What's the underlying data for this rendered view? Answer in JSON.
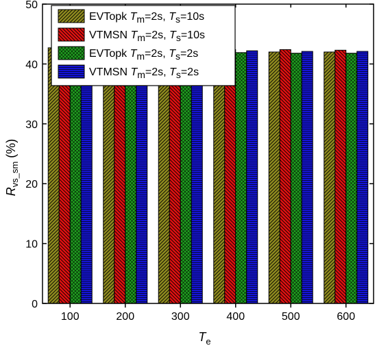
{
  "chart_data": {
    "type": "bar",
    "title": "",
    "xlabel": "T",
    "xlabel_sub": "e",
    "ylabel": "R",
    "ylabel_sub": "vs_sm",
    "ylabel_suffix": " (%)",
    "ylim": [
      0,
      50
    ],
    "yticks": [
      0,
      10,
      20,
      30,
      40,
      50
    ],
    "grid": false,
    "legend_position": "top-left",
    "categories": [
      "100",
      "200",
      "300",
      "400",
      "500",
      "600"
    ],
    "series": [
      {
        "name": "EVTopk Tm=2s, Ts=10s",
        "legend": {
          "pre": "EVTopk ",
          "m": "T",
          "m_sub": "m",
          "mid": "=2s, ",
          "s": "T",
          "s_sub": "s",
          "post": "=10s"
        },
        "color": "#8f8b1f",
        "pattern": "diag-forward",
        "values": [
          42.7,
          42.3,
          42.2,
          42.1,
          42.0,
          42.0
        ]
      },
      {
        "name": "VTMSN Tm=2s, Ts=10s",
        "legend": {
          "pre": "VTMSN ",
          "m": "T",
          "m_sub": "m",
          "mid": "=2s, ",
          "s": "T",
          "s_sub": "s",
          "post": "=10s"
        },
        "color": "#e01010",
        "pattern": "diag-back",
        "values": [
          43.0,
          42.7,
          42.5,
          42.4,
          42.4,
          42.3
        ]
      },
      {
        "name": "EVTopk Tm=2s, Ts=2s",
        "legend": {
          "pre": "EVTopk ",
          "m": "T",
          "m_sub": "m",
          "mid": "=2s, ",
          "s": "T",
          "s_sub": "s",
          "post": "=2s"
        },
        "color": "#1fa11f",
        "pattern": "crosshatch",
        "values": [
          42.2,
          42.0,
          41.9,
          41.9,
          41.8,
          41.8
        ]
      },
      {
        "name": "VTMSN Tm=2s, Ts=2s",
        "legend": {
          "pre": "VTMSN ",
          "m": "T",
          "m_sub": "m",
          "mid": "=2s, ",
          "s": "T",
          "s_sub": "s",
          "post": "=2s"
        },
        "color": "#1414d6",
        "pattern": "horizontal",
        "values": [
          42.5,
          42.3,
          42.2,
          42.2,
          42.1,
          42.1
        ]
      }
    ]
  }
}
